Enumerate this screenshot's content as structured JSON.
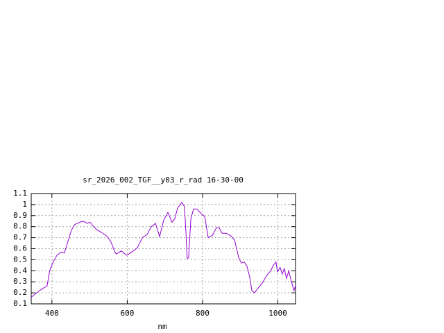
{
  "chart_data": {
    "type": "line",
    "title": "sr_2026_002_TGF__y03_r_rad 16-30-00",
    "x_label": "nm",
    "xlim": [
      345,
      1047
    ],
    "ylim": [
      0.1,
      1.1
    ],
    "xticks": [
      400,
      600,
      800,
      1000
    ],
    "yticks": [
      0.1,
      0.2,
      0.3,
      0.4,
      0.5,
      0.6,
      0.7,
      0.8,
      0.9,
      1,
      1.1
    ],
    "grid": true,
    "series": [
      {
        "color": "#9400d3",
        "x": [
          345,
          363,
          376,
          387,
          394,
          402,
          413,
          424,
          433,
          442,
          452,
          461,
          474,
          483,
          494,
          501,
          511,
          520,
          535,
          547,
          557,
          566,
          571,
          584,
          599,
          616,
          627,
          640,
          653,
          664,
          675,
          686,
          697,
          708,
          719,
          726,
          734,
          745,
          752,
          756,
          759,
          763,
          769,
          776,
          785,
          796,
          806,
          815,
          826,
          837,
          844,
          852,
          863,
          874,
          885,
          896,
          903,
          911,
          918,
          925,
          931,
          938,
          947,
          959,
          971,
          981,
          988,
          995,
          999,
          1006,
          1012,
          1017,
          1023,
          1029,
          1036,
          1043,
          1047
        ],
        "values": [
          0.16,
          0.21,
          0.24,
          0.26,
          0.4,
          0.47,
          0.54,
          0.57,
          0.56,
          0.66,
          0.77,
          0.82,
          0.84,
          0.85,
          0.83,
          0.84,
          0.8,
          0.77,
          0.74,
          0.71,
          0.66,
          0.58,
          0.55,
          0.58,
          0.54,
          0.58,
          0.61,
          0.7,
          0.73,
          0.8,
          0.83,
          0.71,
          0.86,
          0.93,
          0.84,
          0.87,
          0.97,
          1.02,
          0.98,
          0.75,
          0.51,
          0.52,
          0.87,
          0.96,
          0.96,
          0.92,
          0.89,
          0.7,
          0.72,
          0.79,
          0.79,
          0.74,
          0.74,
          0.72,
          0.68,
          0.52,
          0.47,
          0.48,
          0.44,
          0.35,
          0.22,
          0.2,
          0.24,
          0.29,
          0.36,
          0.4,
          0.45,
          0.48,
          0.39,
          0.43,
          0.37,
          0.42,
          0.33,
          0.4,
          0.3,
          0.22,
          0.27
        ]
      }
    ]
  }
}
